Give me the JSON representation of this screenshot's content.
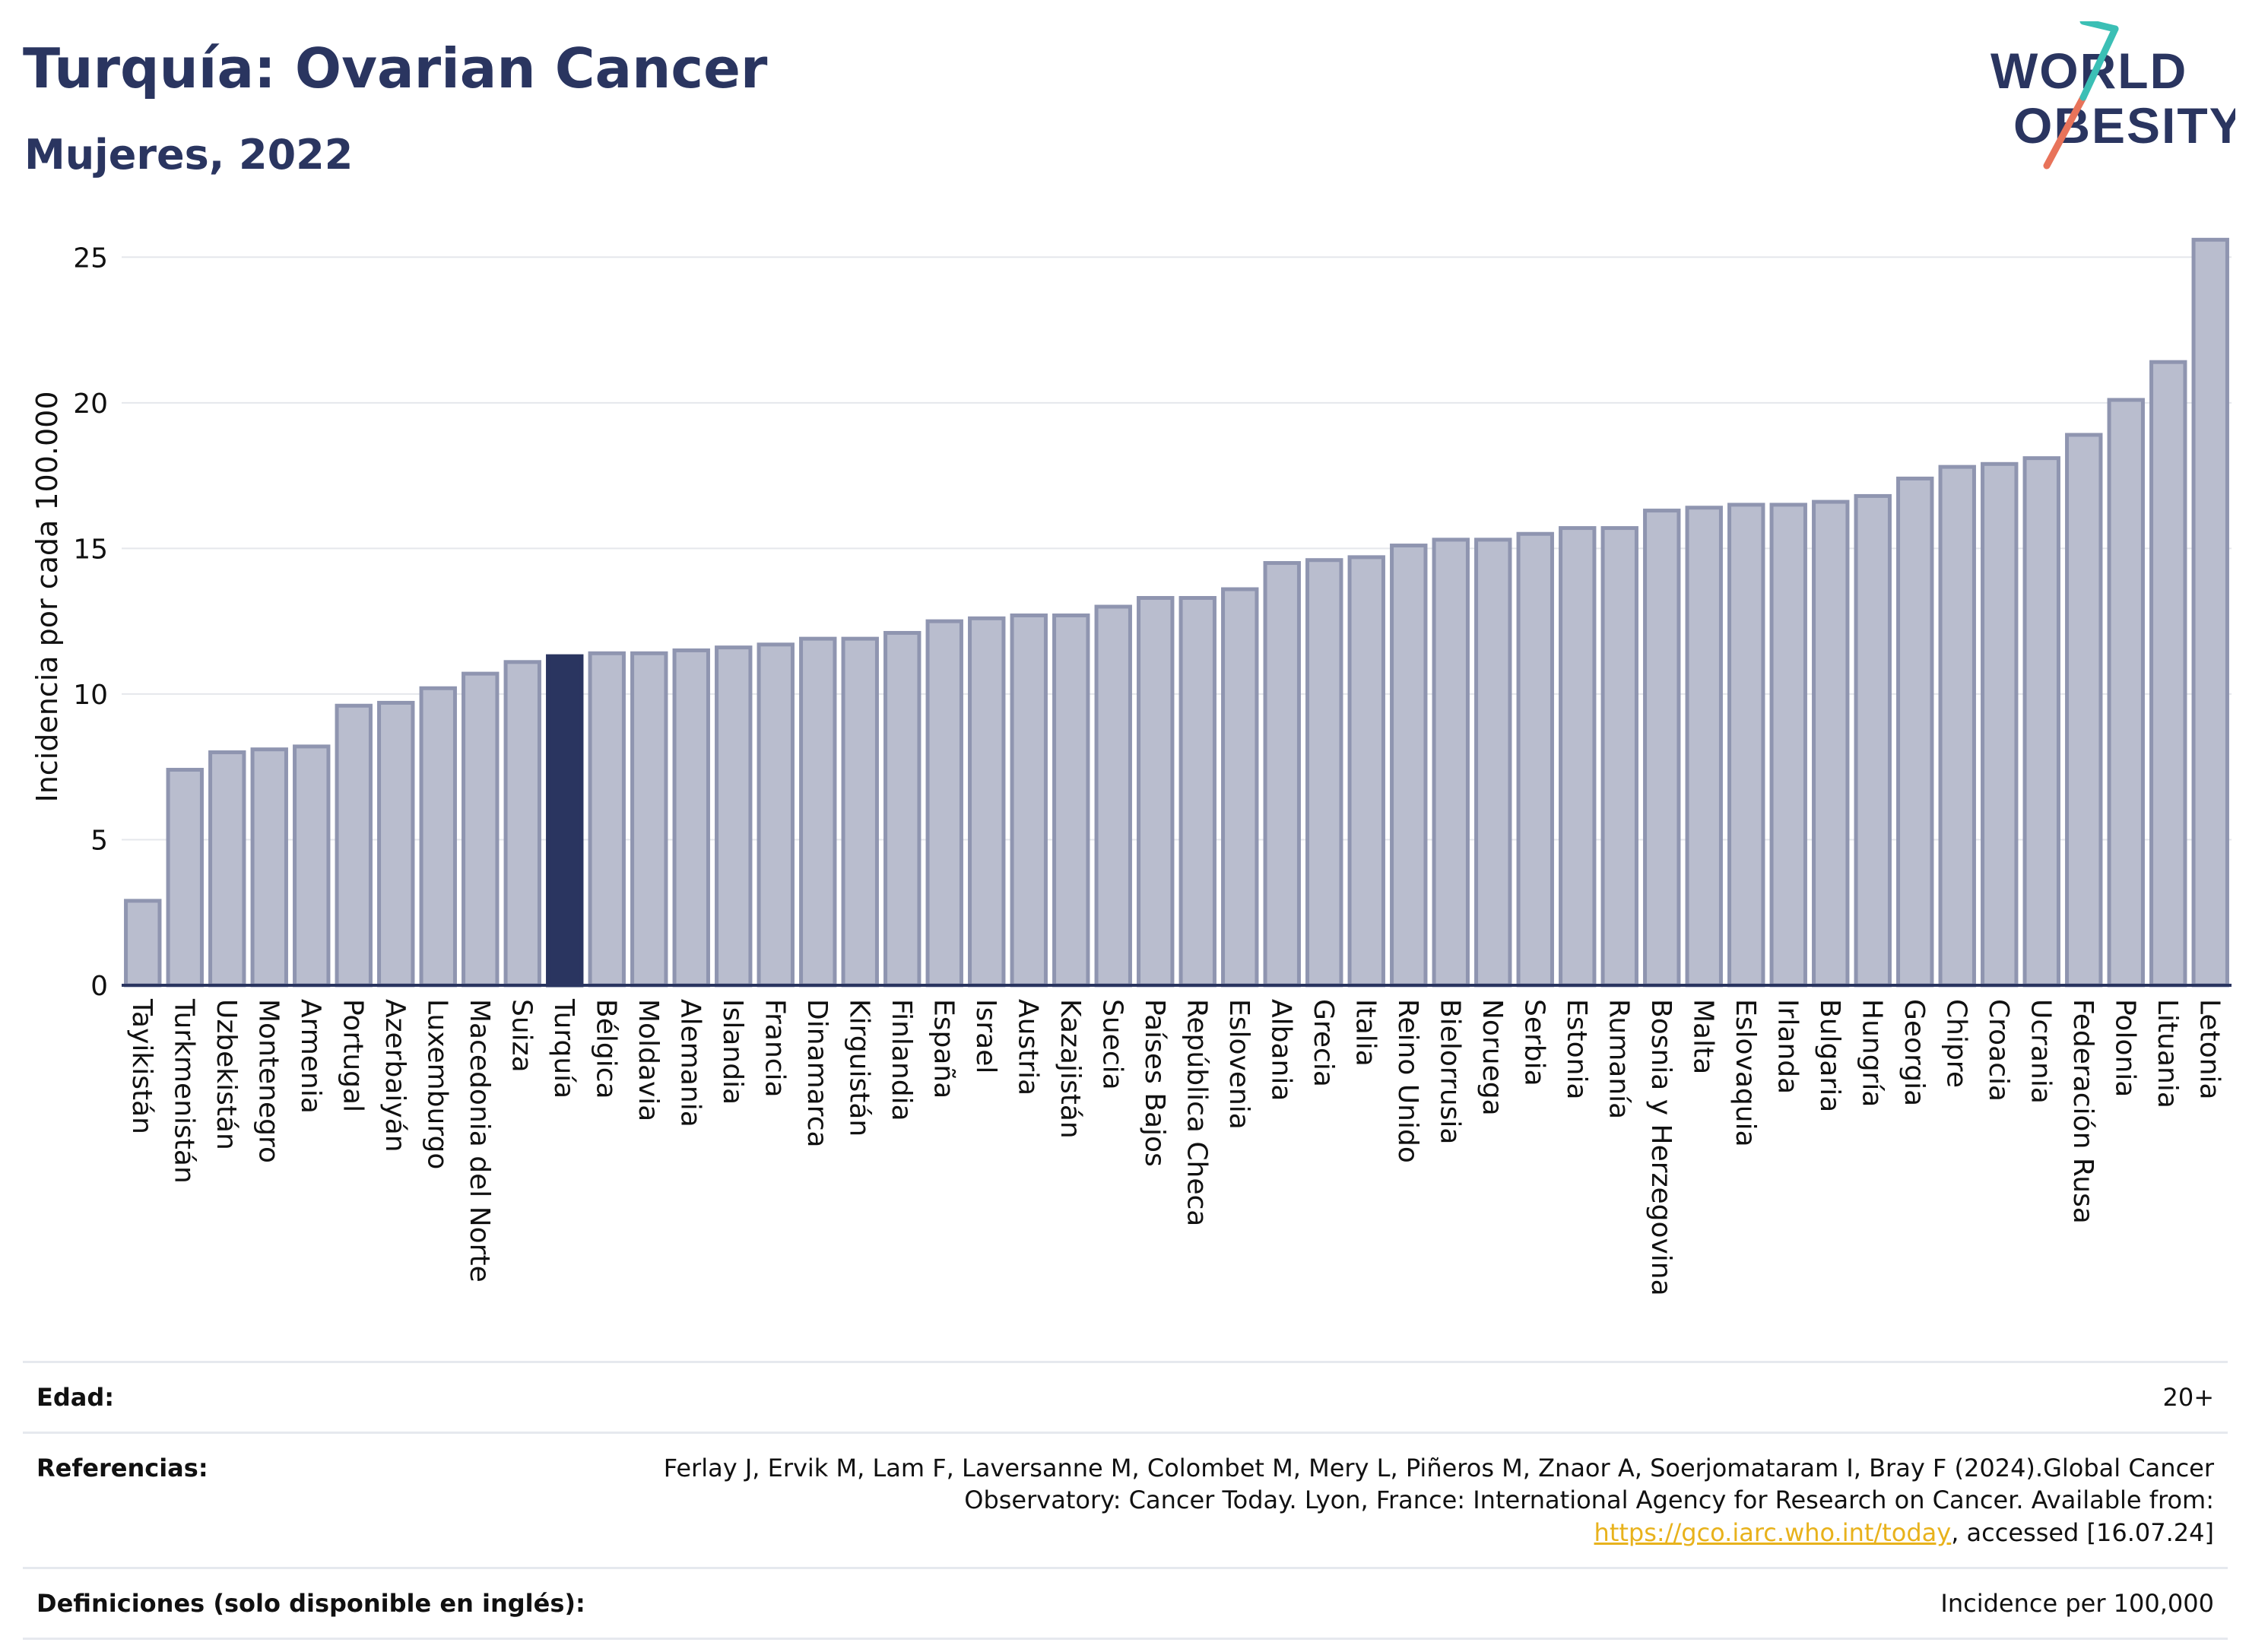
{
  "header": {
    "title": "Turquía: Ovarian Cancer",
    "subtitle": "Mujeres, 2022"
  },
  "logo": {
    "line1": "WORLD",
    "line2": "OBESITY",
    "slash_colors": [
      "#e8735a",
      "#3bbfb5"
    ]
  },
  "colors": {
    "bar": "#b9bdce",
    "bar_stroke": "#8f95b0",
    "highlight": "#2a3560",
    "text": "#2a3560"
  },
  "chart_data": {
    "type": "bar",
    "ylabel": "Incidencia por cada 100.000",
    "ylim": [
      0,
      26
    ],
    "yticks": [
      0,
      5,
      10,
      15,
      20,
      25
    ],
    "grid": true,
    "highlight": "Turquía",
    "categories": [
      "Tayikistán",
      "Turkmenistán",
      "Uzbekistán",
      "Montenegro",
      "Armenia",
      "Portugal",
      "Azerbaiyán",
      "Luxemburgo",
      "Macedonia del Norte",
      "Suiza",
      "Turquía",
      "Bélgica",
      "Moldavia",
      "Alemania",
      "Islandia",
      "Francia",
      "Dinamarca",
      "Kirguistán",
      "Finlandia",
      "España",
      "Israel",
      "Austria",
      "Kazajistán",
      "Suecia",
      "Países Bajos",
      "República Checa",
      "Eslovenia",
      "Albania",
      "Grecia",
      "Italia",
      "Reino Unido",
      "Bielorrusia",
      "Noruega",
      "Serbia",
      "Estonia",
      "Rumanía",
      "Bosnia y Herzegovina",
      "Malta",
      "Eslovaquia",
      "Irlanda",
      "Bulgaria",
      "Hungría",
      "Georgia",
      "Chipre",
      "Croacia",
      "Ucrania",
      "Federación Rusa",
      "Polonia",
      "Lituania",
      "Letonia"
    ],
    "values": [
      2.9,
      7.4,
      8.0,
      8.1,
      8.2,
      9.6,
      9.7,
      10.2,
      10.7,
      11.1,
      11.3,
      11.4,
      11.4,
      11.5,
      11.6,
      11.7,
      11.9,
      11.9,
      12.1,
      12.5,
      12.6,
      12.7,
      12.7,
      13.0,
      13.3,
      13.3,
      13.6,
      14.5,
      14.6,
      14.7,
      15.1,
      15.3,
      15.3,
      15.5,
      15.7,
      15.7,
      16.3,
      16.4,
      16.5,
      16.5,
      16.6,
      16.8,
      17.4,
      17.8,
      17.9,
      18.1,
      18.9,
      20.1,
      21.4,
      25.6
    ]
  },
  "info": {
    "age_label": "Edad:",
    "age_value": "20+",
    "references_label": "Referencias:",
    "references_text": "Ferlay J, Ervik M, Lam F, Laversanne M, Colombet M, Mery L, Piñeros M, Znaor A, Soerjomataram I, Bray F (2024).Global Cancer Observatory: Cancer Today. Lyon, France: International Agency for Research on Cancer. Available from: ",
    "references_link": "https://gco.iarc.who.int/today",
    "references_tail": ", accessed [16.07.24]",
    "definitions_label": "Definiciones (solo disponible en inglés):",
    "definitions_value": "Incidence per 100,000"
  }
}
